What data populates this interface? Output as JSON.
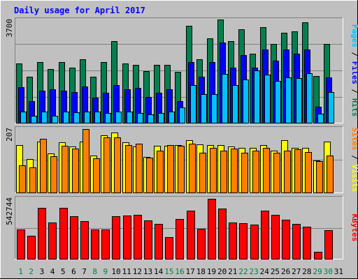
{
  "chart_data": {
    "type": "bar",
    "title": "Daily usage for April 2017",
    "categories": [
      "1",
      "2",
      "3",
      "4",
      "5",
      "6",
      "7",
      "8",
      "9",
      "10",
      "11",
      "12",
      "13",
      "14",
      "15",
      "16",
      "17",
      "18",
      "19",
      "20",
      "21",
      "22",
      "23",
      "24",
      "25",
      "26",
      "27",
      "28",
      "29",
      "30",
      "31"
    ],
    "weekend_days": [
      "1",
      "2",
      "8",
      "9",
      "15",
      "16",
      "22",
      "23",
      "29",
      "30"
    ],
    "colors": {
      "background": "#c0c0c0",
      "title": "#0000ff",
      "weekday_label": "#000000",
      "weekend_label": "#008040",
      "hits": "#008050",
      "files": "#0000ff",
      "pages": "#00c0ff",
      "visits": "#ffff00",
      "sites": "#ff8000",
      "kbytes": "#ff0000"
    },
    "panels": [
      {
        "id": "hits-files-pages",
        "ymax_label": "3700",
        "ymax": 3700,
        "side_label": [
          {
            "text": "Pages",
            "color": "#00c0ff"
          },
          {
            "text": " / ",
            "color": "#000000"
          },
          {
            "text": "Files",
            "color": "#0000ff"
          },
          {
            "text": " / ",
            "color": "#000000"
          },
          {
            "text": "Hits",
            "color": "#008050"
          }
        ],
        "series": [
          {
            "name": "Hits",
            "color": "#008050",
            "values": [
              2090,
              1640,
              2140,
              1910,
              2140,
              1960,
              2240,
              1640,
              2140,
              2890,
              2090,
              2040,
              1820,
              2040,
              2040,
              1790,
              3440,
              2240,
              2990,
              3640,
              2890,
              3300,
              2440,
              3390,
              2790,
              3190,
              3240,
              3540,
              1650,
              2790,
              null
            ]
          },
          {
            "name": "Files",
            "color": "#0000ff",
            "values": [
              1270,
              760,
              1140,
              1190,
              1140,
              1080,
              1290,
              890,
              1060,
              1340,
              1190,
              1240,
              920,
              1050,
              1190,
              770,
              2140,
              1640,
              2150,
              2840,
              1940,
              2390,
              1940,
              2590,
              2190,
              2590,
              2440,
              2590,
              570,
              1600,
              null
            ]
          },
          {
            "name": "Pages",
            "color": "#00c0ff",
            "values": [
              390,
              250,
              390,
              240,
              390,
              380,
              390,
              390,
              340,
              390,
              390,
              340,
              290,
              340,
              390,
              540,
              1340,
              1010,
              1010,
              1730,
              1340,
              1540,
              1840,
              1690,
              1470,
              1600,
              1590,
              1740,
              330,
              1090,
              null
            ]
          }
        ]
      },
      {
        "id": "visits-sites",
        "ymax_label": "207",
        "ymax": 207,
        "side_label": [
          {
            "text": "Sites",
            "color": "#ff8000"
          },
          {
            "text": " / ",
            "color": "#000000"
          },
          {
            "text": "Visits",
            "color": "#ffff00"
          }
        ],
        "series": [
          {
            "name": "Visits",
            "color": "#ffff00",
            "values": [
              150,
              105,
              160,
              123,
              158,
              145,
              160,
              117,
              180,
              190,
              158,
              145,
              112,
              148,
              148,
              150,
              165,
              152,
              150,
              150,
              145,
              140,
              140,
              150,
              133,
              165,
              142,
              140,
              102,
              160,
              null
            ]
          },
          {
            "name": "Sites",
            "color": "#ff8000",
            "values": [
              85,
              80,
              170,
              115,
              147,
              138,
              200,
              108,
              175,
              175,
              150,
              155,
              110,
              133,
              150,
              148,
              155,
              125,
              140,
              133,
              138,
              125,
              132,
              140,
              125,
              133,
              137,
              128,
              98,
              117,
              null
            ]
          }
        ]
      },
      {
        "id": "kbytes",
        "ymax_label": "542744",
        "ymax": 542744,
        "side_label": [
          {
            "text": "KBytes",
            "color": "#ff0000"
          }
        ],
        "series": [
          {
            "name": "KBytes",
            "color": "#ff0000",
            "values": [
              255000,
              200000,
              445000,
              320000,
              445000,
              375000,
              330000,
              255000,
              255000,
              375000,
              380000,
              385000,
              335000,
              305000,
              190000,
              350000,
              420000,
              265000,
              527000,
              440000,
              320000,
              310000,
              300000,
              420000,
              385000,
              340000,
              305000,
              280000,
              60000,
              250000,
              null
            ]
          }
        ]
      }
    ]
  }
}
